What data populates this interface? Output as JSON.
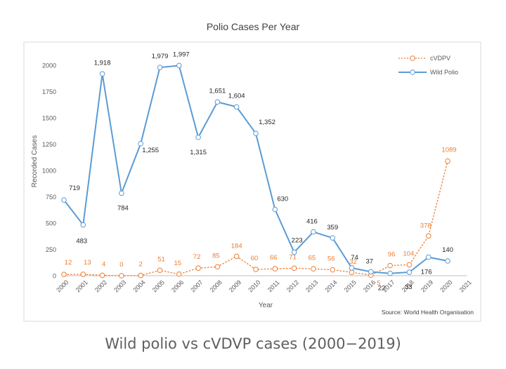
{
  "caption": "Wild polio vs cVDVP cases (2000−2019)",
  "chart_data": {
    "type": "line",
    "title": "Polio Cases Per Year",
    "xlabel": "Year",
    "ylabel": "Recorded Cases",
    "source": "Source: World Health Organisation",
    "ylim": [
      0,
      2000
    ],
    "yticks": [
      0,
      250,
      500,
      750,
      1000,
      1250,
      1500,
      1750,
      2000
    ],
    "x": [
      2000,
      2001,
      2002,
      2003,
      2004,
      2005,
      2006,
      2007,
      2008,
      2009,
      2010,
      2011,
      2012,
      2013,
      2014,
      2015,
      2016,
      2017,
      2018,
      2019,
      2020,
      2021
    ],
    "legend_position": "top-right",
    "series": [
      {
        "name": "cVDPV",
        "color": "#ed7d31",
        "dashed": true,
        "x": [
          2000,
          2001,
          2002,
          2003,
          2004,
          2005,
          2006,
          2007,
          2008,
          2009,
          2010,
          2011,
          2012,
          2013,
          2014,
          2015,
          2016,
          2017,
          2018,
          2019,
          2020
        ],
        "values": [
          12,
          13,
          4,
          0,
          2,
          51,
          15,
          72,
          85,
          184,
          60,
          66,
          71,
          65,
          56,
          32,
          5,
          96,
          104,
          378,
          1089
        ],
        "labels": [
          "12",
          "13",
          "4",
          "0",
          "2",
          "51",
          "15",
          "72",
          "85",
          "184",
          "60",
          "66",
          "71",
          "65",
          "56",
          "32",
          "5",
          "96",
          "104",
          "378",
          "1089"
        ]
      },
      {
        "name": "Wild Polio",
        "color": "#5b9bd5",
        "dashed": false,
        "x": [
          2000,
          2001,
          2002,
          2003,
          2004,
          2005,
          2006,
          2007,
          2008,
          2009,
          2010,
          2011,
          2012,
          2013,
          2014,
          2015,
          2016,
          2017,
          2018,
          2019,
          2020
        ],
        "values": [
          719,
          483,
          1918,
          784,
          1255,
          1979,
          1997,
          1315,
          1651,
          1604,
          1352,
          630,
          223,
          416,
          359,
          74,
          37,
          22,
          33,
          176,
          140
        ],
        "labels": [
          "719",
          "483",
          "1,918",
          "784",
          "1,255",
          "1,979",
          "1,997",
          "1,315",
          "1,651",
          "1,604",
          "1,352",
          "630",
          "223",
          "416",
          "359",
          "74",
          "37",
          "22",
          "33",
          "176",
          "140"
        ]
      }
    ]
  }
}
